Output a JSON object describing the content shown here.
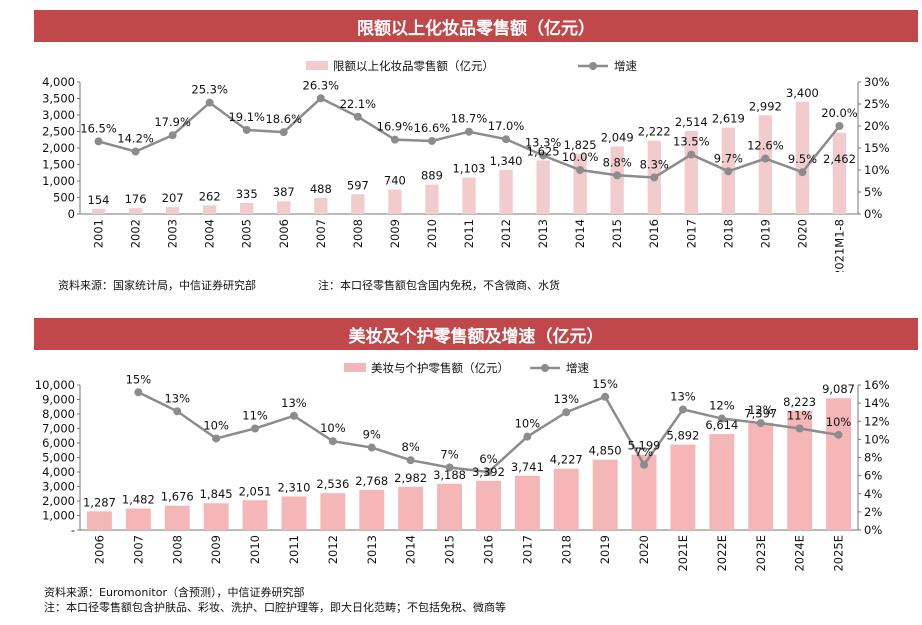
{
  "colors": {
    "title_bg": "#c0484a",
    "bar1": "#f2cccc",
    "bar2": "#f4b6b6",
    "line": "#8c8c8c"
  },
  "chart_data": [
    {
      "type": "bar",
      "title": "限额以上化妆品零售额（亿元）",
      "categories": [
        "2001",
        "2002",
        "2003",
        "2004",
        "2005",
        "2006",
        "2007",
        "2008",
        "2009",
        "2010",
        "2011",
        "2012",
        "2013",
        "2014",
        "2015",
        "2016",
        "2017",
        "2018",
        "2019",
        "2020",
        "2021M1-8"
      ],
      "value_labels": [
        "154",
        "176",
        "207",
        "262",
        "335",
        "387",
        "488",
        "597",
        "740",
        "889",
        "1,103",
        "1,340",
        "1,625",
        "1,825",
        "2,049",
        "2,222",
        "2,514",
        "2,619",
        "2,992",
        "3,400",
        "2,462"
      ],
      "growth_labels": [
        "16.5%",
        "14.2%",
        "17.9%",
        "25.3%",
        "19.1%",
        "18.6%",
        "26.3%",
        "22.1%",
        "16.9%",
        "16.6%",
        "18.7%",
        "17.0%",
        "13.3%",
        "10.0%",
        "8.8%",
        "8.3%",
        "13.5%",
        "9.7%",
        "12.6%",
        "9.5%",
        "20.0%"
      ],
      "series": [
        {
          "name": "限额以上化妆品零售额（亿元）",
          "type": "bar",
          "axis": "left",
          "values": [
            154,
            176,
            207,
            262,
            335,
            387,
            488,
            597,
            740,
            889,
            1103,
            1340,
            1625,
            1825,
            2049,
            2222,
            2514,
            2619,
            2992,
            3400,
            2462
          ]
        },
        {
          "name": "增速",
          "type": "line",
          "axis": "right",
          "values": [
            16.5,
            14.2,
            17.9,
            25.3,
            19.1,
            18.6,
            26.3,
            22.1,
            16.9,
            16.6,
            18.7,
            17.0,
            13.3,
            10.0,
            8.8,
            8.3,
            13.5,
            9.7,
            12.6,
            9.5,
            20.0
          ]
        }
      ],
      "ylim_left": [
        0,
        4000
      ],
      "yticks_left": [
        "0",
        "500",
        "1,000",
        "1,500",
        "2,000",
        "2,500",
        "3,000",
        "3,500",
        "4,000"
      ],
      "ylim_right": [
        0,
        30
      ],
      "yticks_right": [
        "0%",
        "5%",
        "10%",
        "15%",
        "20%",
        "25%",
        "30%"
      ],
      "legend_placement": "top-center",
      "grid": false
    },
    {
      "type": "bar",
      "title": "美妆及个护零售额及增速（亿元）",
      "categories": [
        "2006",
        "2007",
        "2008",
        "2009",
        "2010",
        "2011",
        "2012",
        "2013",
        "2014",
        "2015",
        "2016",
        "2017",
        "2018",
        "2019",
        "2020",
        "2021E",
        "2022E",
        "2023E",
        "2024E",
        "2025E"
      ],
      "value_labels": [
        "1,287",
        "1,482",
        "1,676",
        "1,845",
        "2,051",
        "2,310",
        "2,536",
        "2,768",
        "2,982",
        "3,188",
        "3,392",
        "3,741",
        "4,227",
        "4,850",
        "5,199",
        "5,892",
        "6,614",
        "7,397",
        "8,223",
        "9,087"
      ],
      "growth_labels": [
        "",
        "15%",
        "13%",
        "10%",
        "11%",
        "13%",
        "10%",
        "9%",
        "8%",
        "7%",
        "6%",
        "10%",
        "13%",
        "15%",
        "7%",
        "13%",
        "12%",
        "12%",
        "11%",
        "10%"
      ],
      "series": [
        {
          "name": "美妆与个护零售额（亿元）",
          "type": "bar",
          "axis": "left",
          "values": [
            1287,
            1482,
            1676,
            1845,
            2051,
            2310,
            2536,
            2768,
            2982,
            3188,
            3392,
            3741,
            4227,
            4850,
            5199,
            5892,
            6614,
            7397,
            8223,
            9087
          ]
        },
        {
          "name": "增速",
          "type": "line",
          "axis": "right",
          "values": [
            null,
            15.2,
            13.1,
            10.1,
            11.2,
            12.6,
            9.8,
            9.1,
            7.7,
            6.9,
            6.4,
            10.3,
            13.0,
            14.7,
            7.2,
            13.3,
            12.3,
            11.8,
            11.2,
            10.5
          ]
        }
      ],
      "ylim_left": [
        0,
        10000
      ],
      "yticks_left": [
        "-",
        "1,000",
        "2,000",
        "3,000",
        "4,000",
        "5,000",
        "6,000",
        "7,000",
        "8,000",
        "9,000",
        "10,000"
      ],
      "ylim_right": [
        0,
        16
      ],
      "yticks_right": [
        "0%",
        "2%",
        "4%",
        "6%",
        "8%",
        "10%",
        "12%",
        "14%",
        "16%"
      ],
      "legend_placement": "top-center",
      "grid": false
    }
  ],
  "notes": {
    "source1": "资料来源：国家统计局，中信证券研究部",
    "note1": "注：本口径零售额包含国内免税，不含微商、水货",
    "source2": "资料来源：Euromonitor（含预测），中信证券研究部",
    "note2": "注：本口径零售额包含护肤品、彩妆、洗护、口腔护理等，即大日化范畴；不包括免税、微商等"
  }
}
